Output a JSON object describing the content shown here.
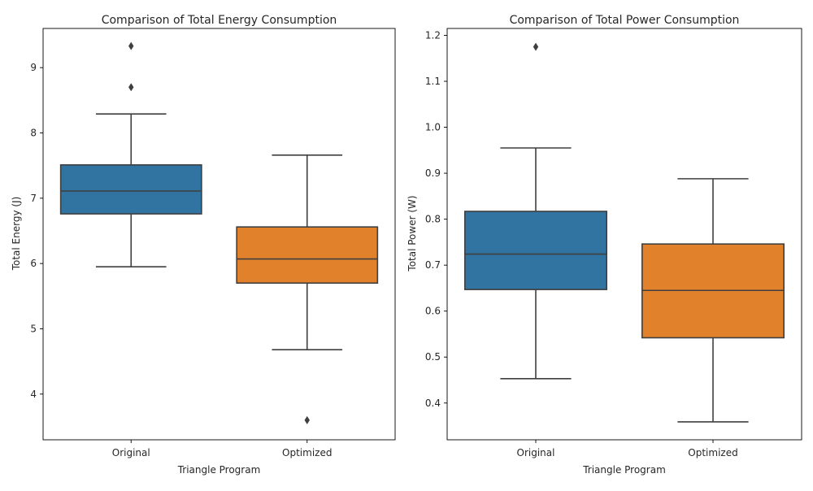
{
  "chart_data": [
    {
      "type": "box",
      "title": "Comparison of Total Energy Consumption",
      "xlabel": "Triangle Program",
      "ylabel": "Total Energy (J)",
      "categories": [
        "Original",
        "Optimized"
      ],
      "ylim": [
        3.3,
        9.6
      ],
      "yticks": [
        4,
        5,
        6,
        7,
        8,
        9
      ],
      "grid": false,
      "boxes": [
        {
          "category": "Original",
          "color": "#3274a1",
          "whisker_low": 5.95,
          "q1": 6.76,
          "median": 7.11,
          "q3": 7.51,
          "whisker_high": 8.29,
          "outliers": [
            8.7,
            9.33
          ]
        },
        {
          "category": "Optimized",
          "color": "#e1812c",
          "whisker_low": 4.68,
          "q1": 5.7,
          "median": 6.07,
          "q3": 6.56,
          "whisker_high": 7.66,
          "outliers": [
            3.6
          ]
        }
      ]
    },
    {
      "type": "box",
      "title": "Comparison of Total Power Consumption",
      "xlabel": "Triangle Program",
      "ylabel": "Total Power (W)",
      "categories": [
        "Original",
        "Optimized"
      ],
      "ylim": [
        0.32,
        1.215
      ],
      "yticks": [
        0.4,
        0.5,
        0.6,
        0.7,
        0.8,
        0.9,
        1.0,
        1.1,
        1.2
      ],
      "grid": false,
      "boxes": [
        {
          "category": "Original",
          "color": "#3274a1",
          "whisker_low": 0.453,
          "q1": 0.647,
          "median": 0.724,
          "q3": 0.817,
          "whisker_high": 0.955,
          "outliers": [
            1.175
          ]
        },
        {
          "category": "Optimized",
          "color": "#e1812c",
          "whisker_low": 0.359,
          "q1": 0.542,
          "median": 0.645,
          "q3": 0.746,
          "whisker_high": 0.888,
          "outliers": []
        }
      ]
    }
  ]
}
